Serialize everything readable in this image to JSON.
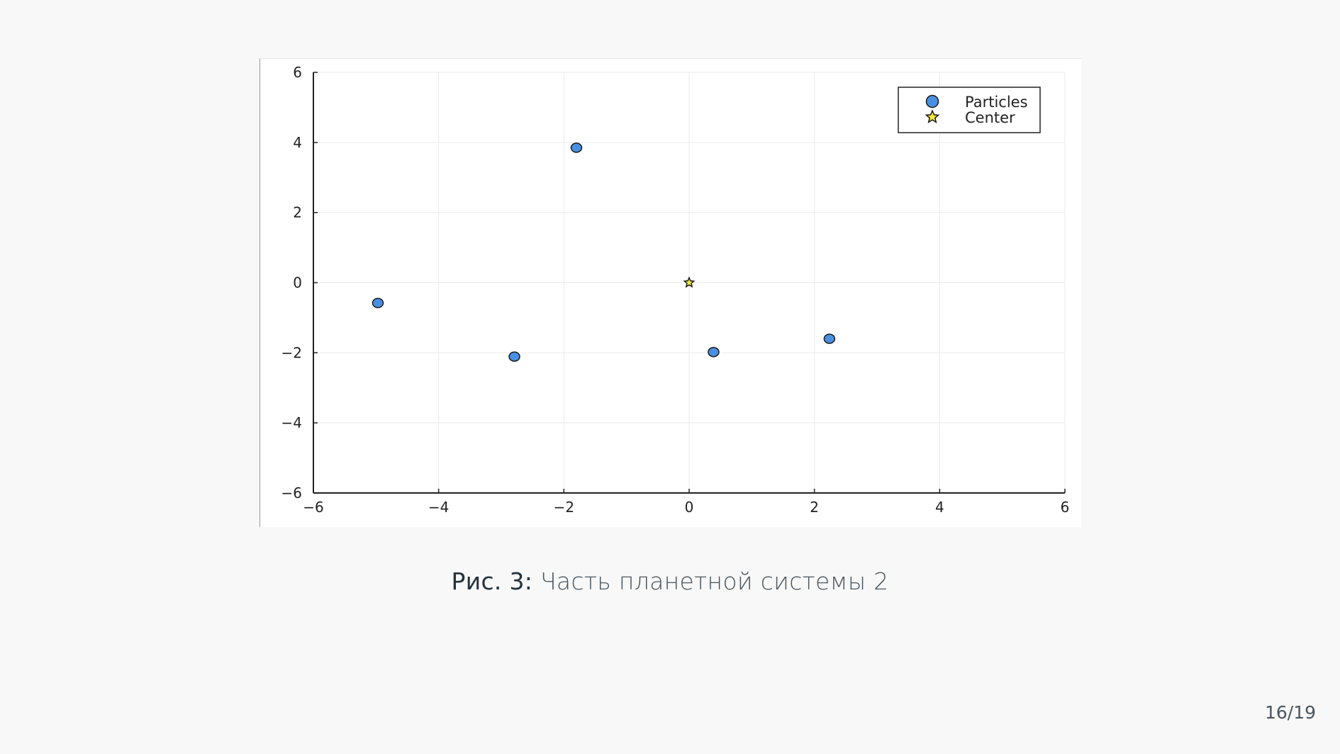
{
  "caption": {
    "label": "Рис. 3:",
    "text": "Часть планетной системы 2"
  },
  "page_number": {
    "current": "16",
    "total": "19"
  },
  "colors": {
    "particles": "#4a90e2",
    "center": "#f2e93a",
    "marker_stroke": "#1a1a1a",
    "grid": "#ebebeb",
    "axis": "#222222"
  },
  "chart_data": {
    "type": "scatter",
    "title": "",
    "xlabel": "",
    "ylabel": "",
    "xlim": [
      -6,
      6
    ],
    "ylim": [
      -6,
      6
    ],
    "xticks": [
      -6,
      -4,
      -2,
      0,
      2,
      4,
      6
    ],
    "yticks": [
      -6,
      -4,
      -2,
      0,
      2,
      4,
      6
    ],
    "xtick_labels": [
      "−6",
      "−4",
      "−2",
      "0",
      "2",
      "4",
      "6"
    ],
    "ytick_labels": [
      "−6",
      "−4",
      "−2",
      "0",
      "2",
      "4",
      "6"
    ],
    "grid": true,
    "legend_position": "top-right",
    "series": [
      {
        "name": "Particles",
        "marker": "circle",
        "color": "#4a90e2",
        "x": [
          -4.97,
          -2.79,
          -1.8,
          0.39,
          2.24
        ],
        "y": [
          -0.58,
          -2.11,
          3.85,
          -1.98,
          -1.6
        ]
      },
      {
        "name": "Center",
        "marker": "star",
        "color": "#f2e93a",
        "x": [
          0.0
        ],
        "y": [
          0.0
        ]
      }
    ]
  }
}
